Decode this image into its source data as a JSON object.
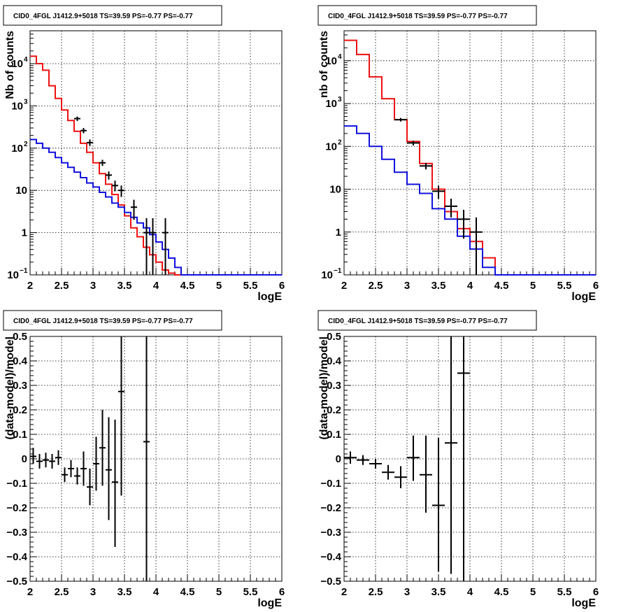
{
  "chart_data": [
    {
      "type": "histogram",
      "title": "CID0_4FGL J1412.9+5018 TS=39.59 PS=-0.77 PS=-0.77",
      "xlabel": "logE",
      "ylabel": "Nb of counts",
      "xlim": [
        2,
        6
      ],
      "ylim": [
        0.1,
        60000
      ],
      "yscale": "log",
      "grid": true,
      "xticks": [
        "2",
        "2.5",
        "3",
        "3.5",
        "4",
        "4.5",
        "5",
        "5.5",
        "6"
      ],
      "yticks": [
        {
          "v": 0.1,
          "b": "10",
          "e": "−1"
        },
        {
          "v": 1,
          "b": "1",
          "e": ""
        },
        {
          "v": 10,
          "b": "10",
          "e": ""
        },
        {
          "v": 100,
          "b": "10",
          "e": "2"
        },
        {
          "v": 1000,
          "b": "10",
          "e": "3"
        },
        {
          "v": 10000,
          "b": "10",
          "e": "4"
        }
      ],
      "bin_edges": [
        2,
        2.1,
        2.2,
        2.3,
        2.4,
        2.5,
        2.6,
        2.7,
        2.8,
        2.9,
        3,
        3.1,
        3.2,
        3.3,
        3.4,
        3.5,
        3.6,
        3.7,
        3.8,
        3.9,
        4,
        4.1,
        4.2,
        4.3,
        4.4,
        4.5,
        4.6,
        4.7,
        4.8,
        4.9,
        5,
        5.1,
        5.2,
        5.3,
        5.4,
        5.5,
        5.6,
        5.7,
        5.8,
        5.9,
        6
      ],
      "series": [
        {
          "color": "#ee1111",
          "values": [
            15000,
            10000,
            7000,
            3000,
            1500,
            800,
            450,
            250,
            130,
            80,
            45,
            25,
            14,
            8,
            4.5,
            2.5,
            1.3,
            0.8,
            0.45,
            0.3,
            0.2,
            0.13,
            0.11,
            0.1,
            0.1,
            0.1,
            0.1,
            0.1,
            0.1,
            0.1,
            0.1,
            0.1,
            0.1,
            0.1,
            0.1,
            0.1,
            0.1,
            0.1,
            0.1,
            0.1
          ]
        },
        {
          "color": "#1111dd",
          "values": [
            160,
            130,
            100,
            80,
            60,
            45,
            35,
            27,
            20,
            15,
            12,
            9,
            7,
            5,
            4,
            3,
            2.3,
            1.7,
            1.3,
            0.9,
            0.6,
            0.4,
            0.25,
            0.15,
            0.1,
            0.1,
            0.1,
            0.1,
            0.1,
            0.1,
            0.1,
            0.1,
            0.1,
            0.1,
            0.1,
            0.1,
            0.1,
            0.1,
            0.1,
            0.1
          ]
        }
      ],
      "data_points": [
        {
          "x": 2.75,
          "y": 500,
          "lo": 440,
          "hi": 560
        },
        {
          "x": 2.85,
          "y": 260,
          "lo": 225,
          "hi": 300
        },
        {
          "x": 2.95,
          "y": 135,
          "lo": 112,
          "hi": 160
        },
        {
          "x": 3.15,
          "y": 45,
          "lo": 38,
          "hi": 53
        },
        {
          "x": 3.25,
          "y": 23,
          "lo": 18,
          "hi": 28
        },
        {
          "x": 3.35,
          "y": 13,
          "lo": 9.5,
          "hi": 17
        },
        {
          "x": 3.45,
          "y": 10,
          "lo": 7,
          "hi": 13
        },
        {
          "x": 3.65,
          "y": 4,
          "lo": 2,
          "hi": 6
        },
        {
          "x": 3.85,
          "y": 1,
          "lo": 0.1,
          "hi": 2.2
        },
        {
          "x": 3.95,
          "y": 1,
          "lo": 0.1,
          "hi": 2.2
        },
        {
          "x": 4.15,
          "y": 1,
          "lo": 0.1,
          "hi": 2.2
        }
      ]
    },
    {
      "type": "histogram",
      "title": "CID0_4FGL J1412.9+5018 TS=39.59 PS=-0.77 PS=-0.77",
      "xlabel": "logE",
      "ylabel": "nb of counts",
      "xlim": [
        2,
        6
      ],
      "ylim": [
        0.1,
        50000
      ],
      "yscale": "log",
      "grid": true,
      "xticks": [
        "2",
        "2.5",
        "3",
        "3.5",
        "4",
        "4.5",
        "5",
        "5.5",
        "6"
      ],
      "yticks": [
        {
          "v": 0.1,
          "b": "10",
          "e": "−1"
        },
        {
          "v": 1,
          "b": "1",
          "e": ""
        },
        {
          "v": 10,
          "b": "10",
          "e": ""
        },
        {
          "v": 100,
          "b": "10",
          "e": "2"
        },
        {
          "v": 1000,
          "b": "10",
          "e": "3"
        },
        {
          "v": 10000,
          "b": "10",
          "e": "4"
        }
      ],
      "bin_edges": [
        2,
        2.2,
        2.4,
        2.6,
        2.8,
        3,
        3.2,
        3.4,
        3.6,
        3.8,
        4,
        4.2,
        4.4,
        4.6,
        4.8,
        5,
        5.2,
        5.4,
        5.6,
        5.8,
        6
      ],
      "series": [
        {
          "color": "#ee1111",
          "values": [
            30000,
            14000,
            4200,
            1300,
            420,
            130,
            40,
            10,
            3,
            1.2,
            0.6,
            0.25,
            0.1,
            0.1,
            0.1,
            0.1,
            0.1,
            0.1,
            0.1,
            0.1
          ]
        },
        {
          "color": "#1111dd",
          "values": [
            300,
            200,
            100,
            50,
            25,
            13,
            8,
            3.5,
            2,
            0.8,
            0.4,
            0.15,
            0.1,
            0.1,
            0.1,
            0.1,
            0.1,
            0.1,
            0.1,
            0.1
          ]
        }
      ],
      "data_points": [
        {
          "x": 2.9,
          "y": 420,
          "lo": 380,
          "hi": 460
        },
        {
          "x": 3.1,
          "y": 120,
          "lo": 105,
          "hi": 135
        },
        {
          "x": 3.3,
          "y": 35,
          "lo": 29,
          "hi": 41
        },
        {
          "x": 3.5,
          "y": 9,
          "lo": 6,
          "hi": 12
        },
        {
          "x": 3.7,
          "y": 4,
          "lo": 2.2,
          "hi": 6
        },
        {
          "x": 3.9,
          "y": 2,
          "lo": 0.7,
          "hi": 3.3
        },
        {
          "x": 4.1,
          "y": 1,
          "lo": 0.1,
          "hi": 2.2
        }
      ]
    },
    {
      "type": "scatter",
      "title": "CID0_4FGL J1412.9+5018 TS=39.59 PS=-0.77 PS=-0.77",
      "xlabel": "logE",
      "ylabel": "(data-model)/model",
      "xlim": [
        2,
        6
      ],
      "ylim": [
        -0.5,
        0.5
      ],
      "grid": true,
      "xticks": [
        "2",
        "2.5",
        "3",
        "3.5",
        "4",
        "4.5",
        "5",
        "5.5",
        "6"
      ],
      "yticks": [
        "−0.5",
        "−0.4",
        "−0.3",
        "−0.2",
        "−0.1",
        "0",
        "0.1",
        "0.2",
        "0.3",
        "0.4",
        "0.5"
      ],
      "xerr": 0.05,
      "points": [
        {
          "x": 2.05,
          "y": 0.01,
          "lo": -0.02,
          "hi": 0.045
        },
        {
          "x": 2.15,
          "y": -0.01,
          "lo": -0.04,
          "hi": 0.02
        },
        {
          "x": 2.25,
          "y": -0.005,
          "lo": -0.035,
          "hi": 0.025
        },
        {
          "x": 2.35,
          "y": -0.01,
          "lo": -0.04,
          "hi": 0.02
        },
        {
          "x": 2.45,
          "y": 0.005,
          "lo": -0.025,
          "hi": 0.035
        },
        {
          "x": 2.55,
          "y": -0.065,
          "lo": -0.095,
          "hi": -0.035
        },
        {
          "x": 2.65,
          "y": -0.04,
          "lo": -0.075,
          "hi": -0.005
        },
        {
          "x": 2.75,
          "y": -0.07,
          "lo": -0.105,
          "hi": -0.035
        },
        {
          "x": 2.85,
          "y": -0.04,
          "lo": -0.11,
          "hi": 0.03
        },
        {
          "x": 2.95,
          "y": -0.115,
          "lo": -0.19,
          "hi": -0.04
        },
        {
          "x": 3.05,
          "y": -0.02,
          "lo": -0.13,
          "hi": 0.09
        },
        {
          "x": 3.15,
          "y": 0.045,
          "lo": -0.11,
          "hi": 0.2
        },
        {
          "x": 3.25,
          "y": -0.045,
          "lo": -0.25,
          "hi": 0.17
        },
        {
          "x": 3.35,
          "y": -0.095,
          "lo": -0.36,
          "hi": 0.16
        },
        {
          "x": 3.45,
          "y": 0.275,
          "lo": -0.15,
          "hi": 0.5
        },
        {
          "x": 3.85,
          "y": 0.07,
          "lo": -0.5,
          "hi": 0.5
        }
      ]
    },
    {
      "type": "scatter",
      "title": "CID0_4FGL J1412.9+5018 TS=39.59 PS=-0.77 PS=-0.77",
      "xlabel": "logE",
      "ylabel": "(data-model)/model",
      "xlim": [
        2,
        6
      ],
      "ylim": [
        -0.5,
        0.5
      ],
      "grid": true,
      "xticks": [
        "2",
        "2.5",
        "3",
        "3.5",
        "4",
        "4.5",
        "5",
        "5.5",
        "6"
      ],
      "yticks": [
        "−0.5",
        "−0.4",
        "−0.3",
        "−0.2",
        "−0.1",
        "0",
        "0.1",
        "0.2",
        "0.3",
        "0.4",
        "0.5"
      ],
      "xerr": 0.1,
      "points": [
        {
          "x": 2.1,
          "y": 0.005,
          "lo": -0.02,
          "hi": 0.03
        },
        {
          "x": 2.3,
          "y": -0.005,
          "lo": -0.025,
          "hi": 0.015
        },
        {
          "x": 2.5,
          "y": -0.02,
          "lo": -0.04,
          "hi": 0.0
        },
        {
          "x": 2.7,
          "y": -0.055,
          "lo": -0.085,
          "hi": -0.025
        },
        {
          "x": 2.9,
          "y": -0.075,
          "lo": -0.12,
          "hi": -0.03
        },
        {
          "x": 3.1,
          "y": 0.005,
          "lo": -0.09,
          "hi": 0.095
        },
        {
          "x": 3.3,
          "y": -0.065,
          "lo": -0.22,
          "hi": 0.095
        },
        {
          "x": 3.5,
          "y": -0.19,
          "lo": -0.46,
          "hi": 0.085
        },
        {
          "x": 3.7,
          "y": 0.065,
          "lo": -0.47,
          "hi": 0.5
        },
        {
          "x": 3.9,
          "y": 0.35,
          "lo": -0.5,
          "hi": 0.5
        }
      ]
    }
  ]
}
